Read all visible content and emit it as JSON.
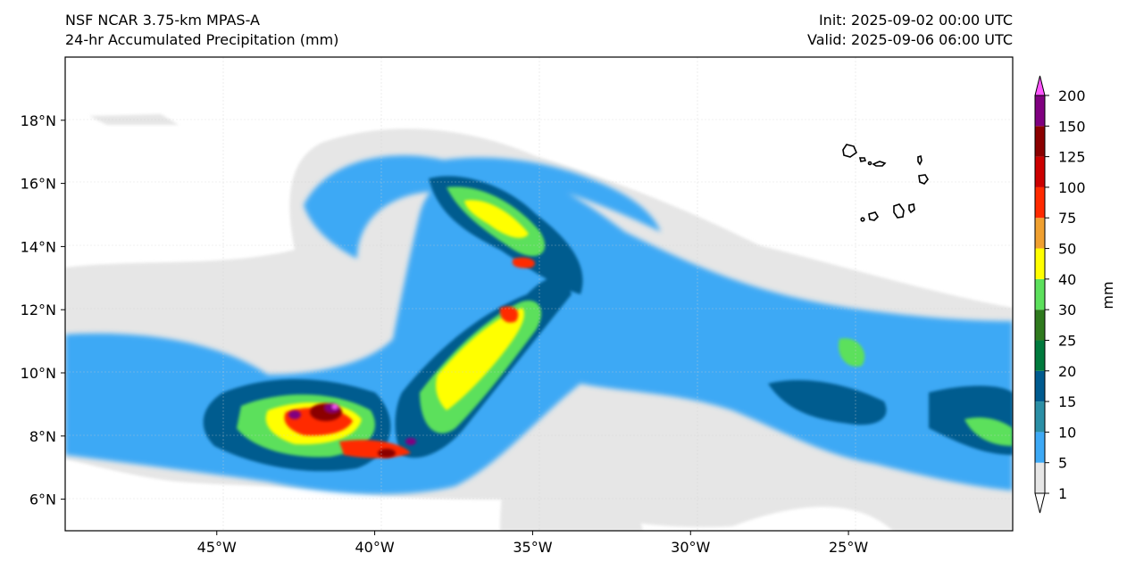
{
  "title": {
    "left_line1": "NSF NCAR 3.75-km MPAS-A",
    "left_line2": "24-hr Accumulated Precipitation (mm)",
    "right_line1": "Init: 2025-09-02 00:00 UTC",
    "right_line2": "Valid: 2025-09-06 06:00 UTC"
  },
  "map": {
    "lon_range": [
      -49.8,
      -19.8
    ],
    "lat_range": [
      5.0,
      20.0
    ],
    "lon_ticks": [
      {
        "value": -45,
        "label": "45°W"
      },
      {
        "value": -40,
        "label": "40°W"
      },
      {
        "value": -35,
        "label": "35°W"
      },
      {
        "value": -30,
        "label": "30°W"
      },
      {
        "value": -25,
        "label": "25°W"
      }
    ],
    "lat_ticks": [
      {
        "value": 6,
        "label": "6°N"
      },
      {
        "value": 8,
        "label": "8°N"
      },
      {
        "value": 10,
        "label": "10°N"
      },
      {
        "value": 12,
        "label": "12°N"
      },
      {
        "value": 14,
        "label": "14°N"
      },
      {
        "value": 16,
        "label": "16°N"
      },
      {
        "value": 18,
        "label": "18°N"
      }
    ],
    "gridlines": true,
    "features": "Cape Verde Islands coastline"
  },
  "colorbar": {
    "label": "mm",
    "extend": "both",
    "levels": [
      "1",
      "5",
      "10",
      "15",
      "20",
      "25",
      "30",
      "40",
      "50",
      "75",
      "100",
      "125",
      "150",
      "200"
    ],
    "colors": [
      "#e6e6e6",
      "#3da9f5",
      "#2b8fa6",
      "#005b8f",
      "#007a3d",
      "#2f7a1e",
      "#5ce05c",
      "#ffff00",
      "#f0a030",
      "#ff2a00",
      "#cc0000",
      "#8b0000",
      "#800080",
      "#ff55ff"
    ],
    "under_color": "#ffffff",
    "over_color": "#ffffff"
  }
}
